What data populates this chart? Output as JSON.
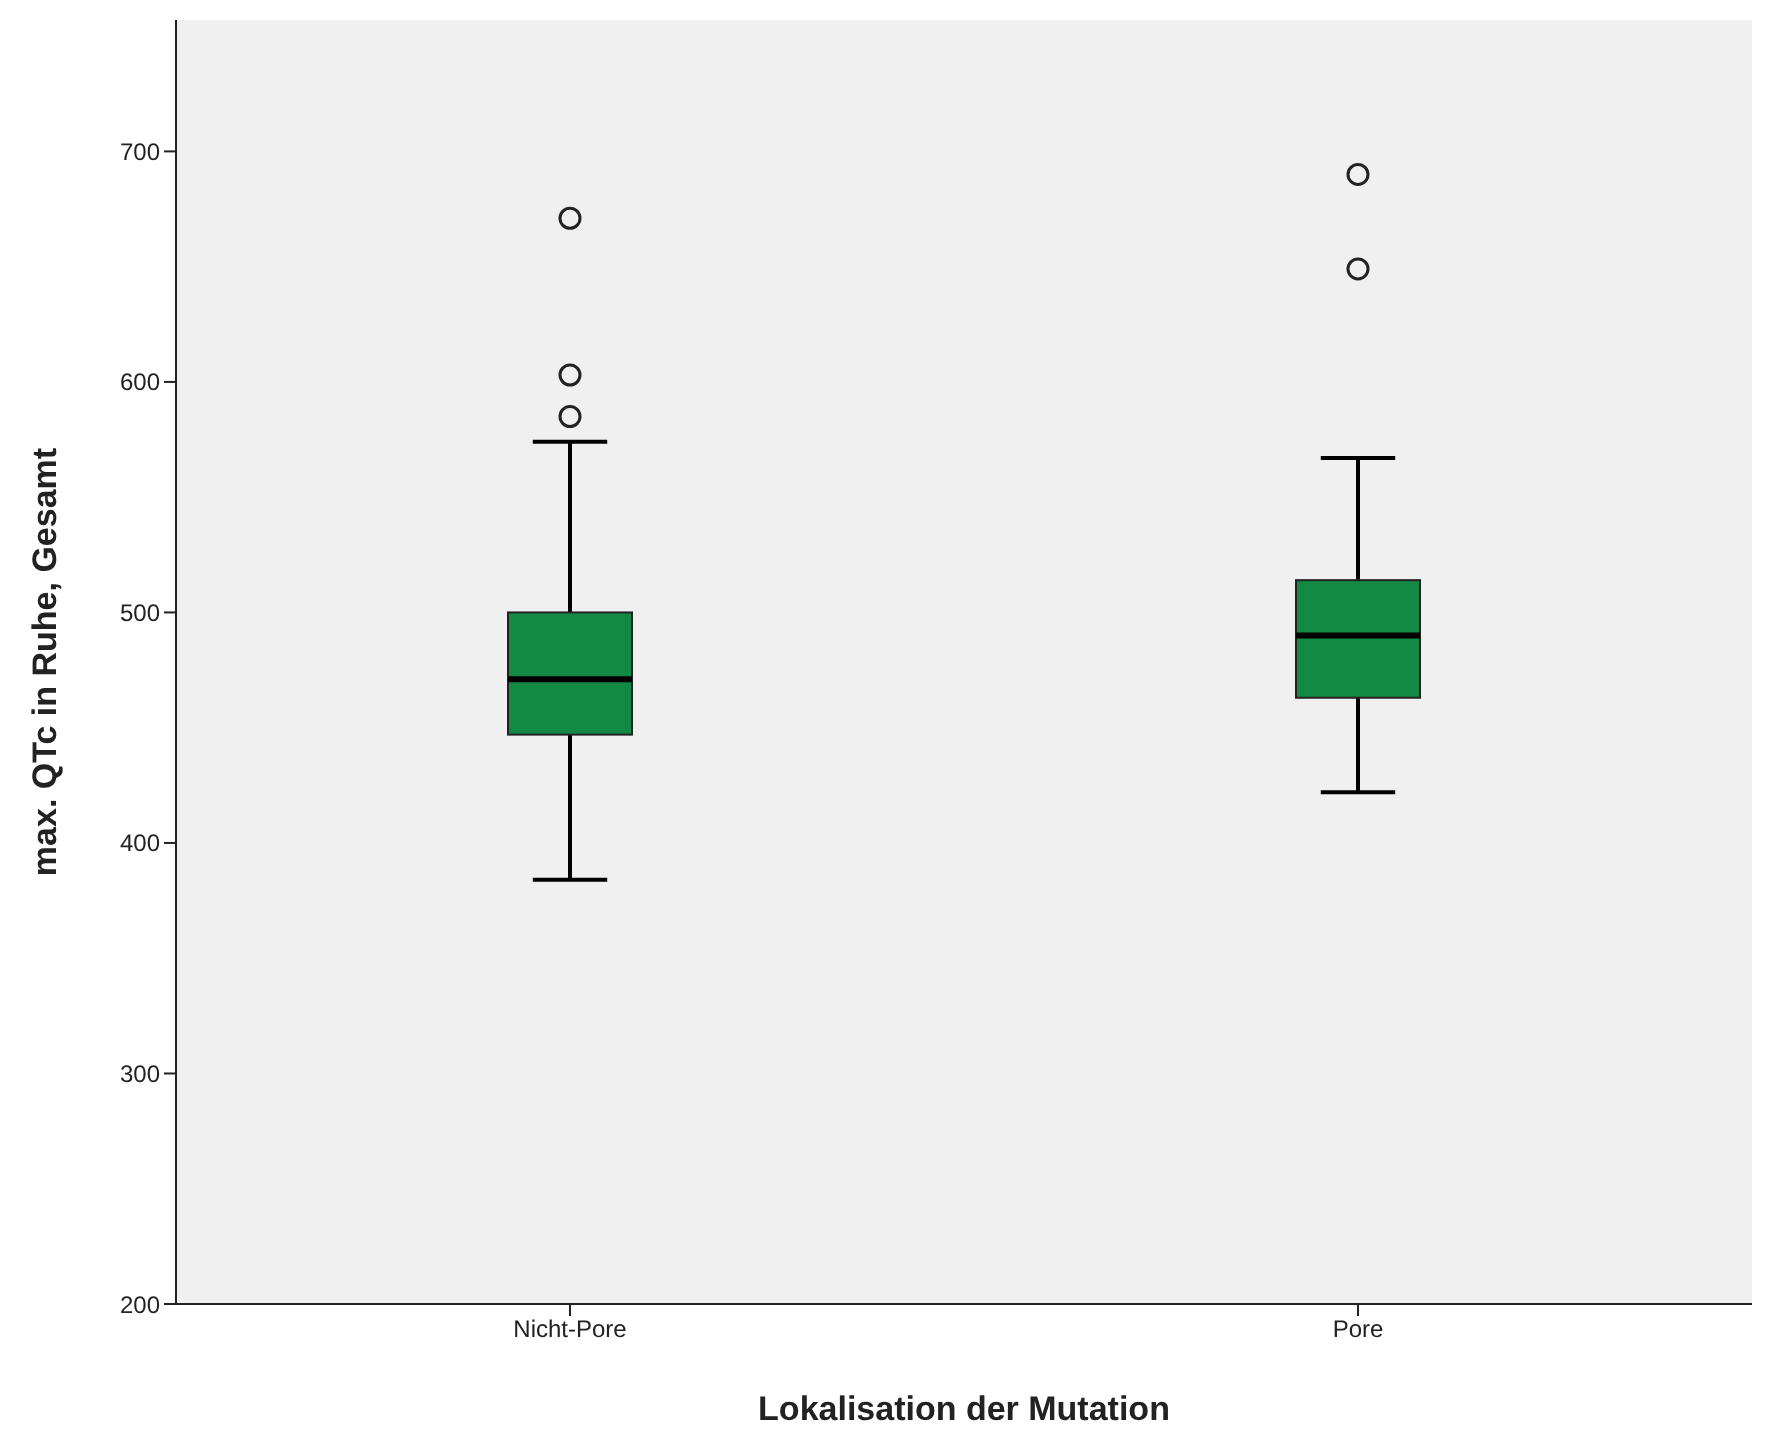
{
  "chart_data": {
    "type": "box",
    "xlabel": "Lokalisation der Mutation",
    "ylabel": "max. QTc in Ruhe, Gesamt",
    "categories": [
      "Nicht-Pore",
      "Pore"
    ],
    "color": "#138a43",
    "boxes": [
      {
        "low": 384,
        "q1": 447,
        "median": 471,
        "q3": 500,
        "high": 574,
        "outliers": [
          585,
          603,
          671
        ]
      },
      {
        "low": 422,
        "q1": 463,
        "median": 490,
        "q3": 514,
        "high": 567,
        "outliers": [
          649,
          690
        ]
      }
    ],
    "ylim": [
      200,
      757
    ],
    "yticks": [
      200,
      300,
      400,
      500,
      600,
      700
    ]
  }
}
